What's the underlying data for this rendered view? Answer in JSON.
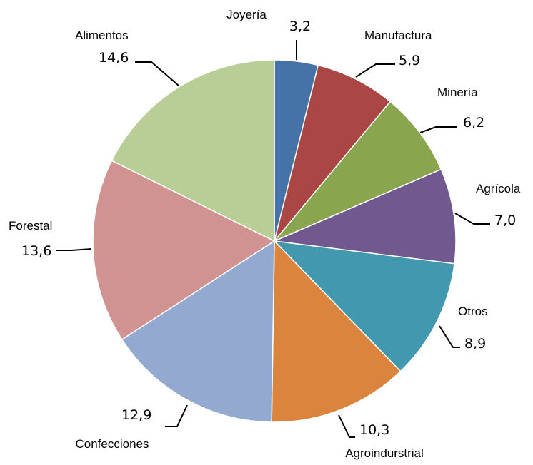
{
  "chart_data": {
    "type": "pie",
    "title": "",
    "start_angle_deg": 0,
    "direction": "clockwise",
    "slices": [
      {
        "label": "Joyería",
        "value": 3.2,
        "value_text": "3,2",
        "color": "#4572A7"
      },
      {
        "label": "Manufactura",
        "value": 5.9,
        "value_text": "5,9",
        "color": "#AA4643"
      },
      {
        "label": "Minería",
        "value": 6.2,
        "value_text": "6,2",
        "color": "#89A54E"
      },
      {
        "label": "Agrícola",
        "value": 7.0,
        "value_text": "7,0",
        "color": "#71588F"
      },
      {
        "label": "Otros",
        "value": 8.9,
        "value_text": "8,9",
        "color": "#4198AF"
      },
      {
        "label": "Agroindurstrial",
        "value": 10.3,
        "value_text": "10,3",
        "color": "#DB843D"
      },
      {
        "label": "Confecciones",
        "value": 12.9,
        "value_text": "12,9",
        "color": "#93A9CF"
      },
      {
        "label": "Forestal",
        "value": 13.6,
        "value_text": "13,6",
        "color": "#D19392"
      },
      {
        "label": "Alimentos",
        "value": 14.6,
        "value_text": "14,6",
        "color": "#B9CD96"
      }
    ]
  }
}
